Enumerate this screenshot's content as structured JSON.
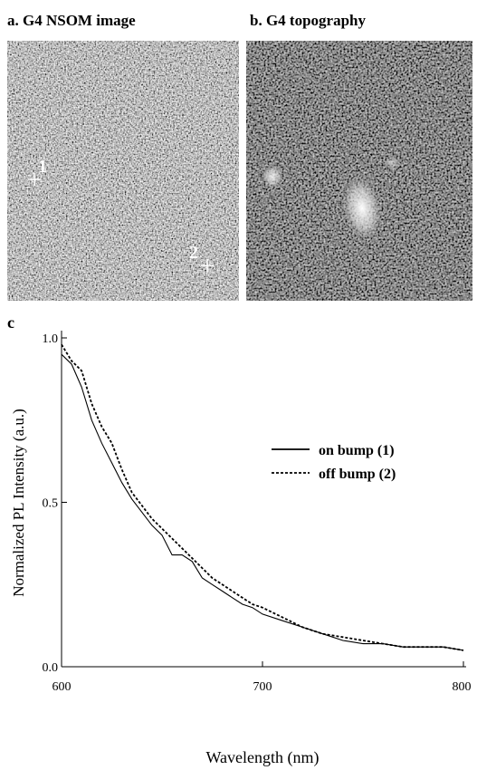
{
  "panels": [
    {
      "label": "a. G4 NSOM image",
      "markers": [
        "1",
        "2"
      ]
    },
    {
      "label": "b. G4 topography"
    }
  ],
  "chart_data": {
    "type": "line",
    "panel_label": "c",
    "x_label": "Wavelength (nm)",
    "y_label": "Normalized PL Intensity (a.u.)",
    "x": [
      600,
      605,
      610,
      615,
      620,
      625,
      630,
      635,
      640,
      645,
      650,
      655,
      660,
      665,
      670,
      675,
      680,
      685,
      690,
      695,
      700,
      710,
      720,
      730,
      740,
      750,
      760,
      770,
      780,
      790,
      800
    ],
    "series": [
      {
        "name": "on bump (1)",
        "color": "#000000",
        "dash": "solid",
        "values": [
          0.95,
          0.92,
          0.85,
          0.75,
          0.68,
          0.62,
          0.56,
          0.51,
          0.47,
          0.43,
          0.4,
          0.34,
          0.34,
          0.32,
          0.27,
          0.25,
          0.23,
          0.21,
          0.19,
          0.18,
          0.16,
          0.14,
          0.12,
          0.1,
          0.08,
          0.07,
          0.07,
          0.06,
          0.06,
          0.06,
          0.05
        ]
      },
      {
        "name": "off bump (2)",
        "color": "#000000",
        "dash": "dashed",
        "values": [
          0.98,
          0.93,
          0.9,
          0.8,
          0.73,
          0.68,
          0.6,
          0.53,
          0.49,
          0.45,
          0.42,
          0.39,
          0.36,
          0.33,
          0.3,
          0.27,
          0.25,
          0.23,
          0.21,
          0.19,
          0.18,
          0.15,
          0.12,
          0.1,
          0.09,
          0.08,
          0.07,
          0.06,
          0.06,
          0.06,
          0.05
        ]
      }
    ],
    "xlim": [
      600,
      800
    ],
    "ylim": [
      0,
      1
    ],
    "xticks": [
      600,
      700,
      800
    ],
    "yticks": [
      {
        "value": 0,
        "label": "0.0"
      },
      0.5,
      {
        "value": 1,
        "label": "1.0"
      }
    ],
    "legend": "upper right"
  }
}
